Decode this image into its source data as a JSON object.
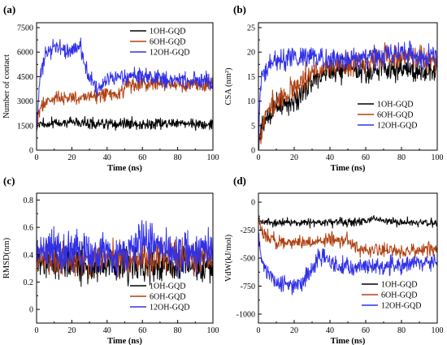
{
  "figure": {
    "panels": [
      "a",
      "b",
      "c",
      "d"
    ]
  },
  "chart_data": [
    {
      "type": "line",
      "panel_label": "(a)",
      "xlabel": "Time (ns)",
      "ylabel": "Number of contact",
      "xlim": [
        0,
        100
      ],
      "ylim": [
        0,
        7800
      ],
      "xticks": [
        0,
        20,
        40,
        60,
        80,
        100
      ],
      "yticks": [
        0,
        1500,
        3000,
        4500,
        6000,
        7500
      ],
      "legend_position": "top-right",
      "series": [
        {
          "name": "1OH-GQD",
          "color": "#000000",
          "noise": 160,
          "x": [
            0,
            1,
            3,
            6,
            10,
            20,
            30,
            40,
            50,
            60,
            70,
            80,
            90,
            100
          ],
          "y": [
            1300,
            1600,
            1650,
            1600,
            1650,
            1700,
            1650,
            1600,
            1650,
            1600,
            1650,
            1600,
            1650,
            1600
          ]
        },
        {
          "name": "6OH-GQD",
          "color": "#b04010",
          "noise": 220,
          "x": [
            0,
            1,
            3,
            6,
            10,
            20,
            30,
            40,
            48,
            50,
            60,
            70,
            80,
            90,
            100
          ],
          "y": [
            1300,
            2200,
            2800,
            3000,
            3100,
            3200,
            3300,
            3400,
            3500,
            3900,
            4000,
            4100,
            4050,
            4000,
            4000
          ]
        },
        {
          "name": "12OH-GQD",
          "color": "#3030e8",
          "noise": 250,
          "x": [
            0,
            2,
            5,
            10,
            15,
            20,
            25,
            28,
            32,
            35,
            40,
            50,
            60,
            70,
            80,
            90,
            100
          ],
          "y": [
            1500,
            4500,
            5800,
            6300,
            6200,
            6100,
            6400,
            5000,
            4200,
            3700,
            4300,
            4500,
            4500,
            4400,
            4300,
            4200,
            4200
          ]
        }
      ]
    },
    {
      "type": "line",
      "panel_label": "(b)",
      "xlabel": "Time (ns)",
      "ylabel": "CSA (nm²)",
      "xlim": [
        0,
        100
      ],
      "ylim": [
        0,
        26
      ],
      "xticks": [
        0,
        20,
        40,
        60,
        80,
        100
      ],
      "yticks": [
        0,
        5,
        10,
        15,
        20,
        25
      ],
      "legend_position": "bottom-right",
      "series": [
        {
          "name": "1OH-GQD",
          "color": "#000000",
          "noise": 1.2,
          "x": [
            0,
            2,
            5,
            10,
            15,
            20,
            25,
            30,
            40,
            50,
            60,
            70,
            80,
            90,
            100
          ],
          "y": [
            0,
            5,
            7,
            9,
            9,
            10,
            12,
            14,
            16,
            16.5,
            16.5,
            17,
            16.5,
            16,
            16
          ]
        },
        {
          "name": "6OH-GQD",
          "color": "#b04010",
          "noise": 1.2,
          "x": [
            0,
            2,
            5,
            10,
            15,
            20,
            25,
            30,
            40,
            50,
            60,
            70,
            80,
            90,
            100
          ],
          "y": [
            0,
            5,
            8,
            10,
            11,
            13,
            14,
            16,
            17,
            17,
            18,
            19,
            19,
            18.5,
            18
          ]
        },
        {
          "name": "12OH-GQD",
          "color": "#3030e8",
          "noise": 1.1,
          "x": [
            0,
            1,
            3,
            5,
            10,
            20,
            30,
            40,
            50,
            60,
            70,
            80,
            90,
            100
          ],
          "y": [
            0,
            13,
            16,
            17,
            18,
            19,
            19,
            18.5,
            18.5,
            19,
            19.5,
            20,
            19.5,
            19
          ]
        }
      ]
    },
    {
      "type": "line",
      "panel_label": "(c)",
      "xlabel": "Time (ns)",
      "ylabel": "RMSD(nm)",
      "xlim": [
        0,
        100
      ],
      "ylim": [
        -0.1,
        0.85
      ],
      "xticks": [
        0,
        20,
        40,
        60,
        80,
        100
      ],
      "yticks": [
        0.0,
        0.2,
        0.4,
        0.6,
        0.8
      ],
      "legend_position": "bottom-right",
      "series": [
        {
          "name": "1OH-GQD",
          "color": "#000000",
          "noise": 0.06,
          "x": [
            0,
            20,
            40,
            60,
            80,
            100
          ],
          "y": [
            0.35,
            0.33,
            0.32,
            0.32,
            0.32,
            0.32
          ]
        },
        {
          "name": "6OH-GQD",
          "color": "#b04010",
          "noise": 0.06,
          "x": [
            0,
            20,
            40,
            60,
            80,
            100
          ],
          "y": [
            0.36,
            0.36,
            0.36,
            0.38,
            0.38,
            0.38
          ]
        },
        {
          "name": "12OH-GQD",
          "color": "#3030e8",
          "noise": 0.08,
          "x": [
            0,
            20,
            40,
            55,
            60,
            80,
            100
          ],
          "y": [
            0.42,
            0.42,
            0.4,
            0.42,
            0.5,
            0.42,
            0.42
          ]
        }
      ]
    },
    {
      "type": "line",
      "panel_label": "(d)",
      "xlabel": "Time (ns)",
      "ylabel": "VdW(kJ/mol)",
      "xlim": [
        0,
        100
      ],
      "ylim": [
        -1080,
        80
      ],
      "xticks": [
        0,
        20,
        40,
        60,
        80,
        100
      ],
      "yticks": [
        -1000,
        -750,
        -500,
        -250,
        0
      ],
      "legend_position": "bottom-right",
      "series": [
        {
          "name": "1OH-GQD",
          "color": "#000000",
          "noise": 18,
          "x": [
            0,
            20,
            40,
            60,
            65,
            70,
            80,
            100
          ],
          "y": [
            -180,
            -175,
            -185,
            -170,
            -140,
            -170,
            -180,
            -185
          ]
        },
        {
          "name": "6OH-GQD",
          "color": "#b04010",
          "noise": 30,
          "x": [
            0,
            3,
            10,
            20,
            30,
            40,
            50,
            55,
            60,
            70,
            80,
            90,
            100
          ],
          "y": [
            -150,
            -300,
            -350,
            -360,
            -360,
            -330,
            -350,
            -400,
            -430,
            -430,
            -440,
            -430,
            -420
          ]
        },
        {
          "name": "12OH-GQD",
          "color": "#3030e8",
          "noise": 40,
          "x": [
            0,
            2,
            5,
            10,
            15,
            20,
            25,
            30,
            35,
            40,
            50,
            60,
            70,
            80,
            90,
            100
          ],
          "y": [
            -300,
            -550,
            -650,
            -720,
            -760,
            -740,
            -720,
            -580,
            -480,
            -540,
            -580,
            -580,
            -570,
            -560,
            -540,
            -530
          ]
        }
      ]
    }
  ]
}
